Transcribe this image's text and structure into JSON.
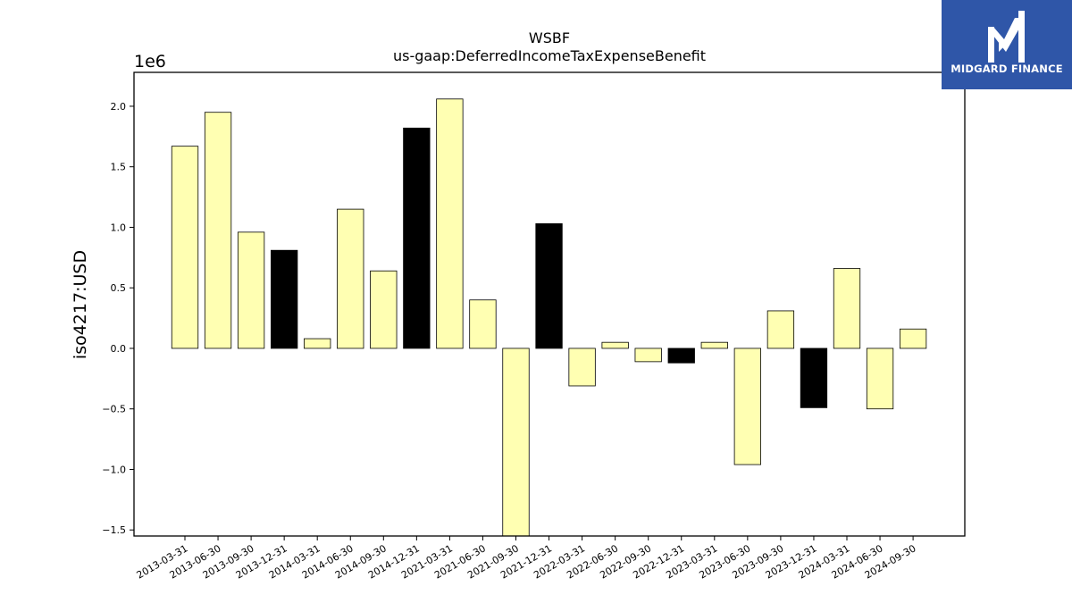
{
  "logo": {
    "text": "MIDGARD FINANCE",
    "background": "#2f56a8",
    "icon": "midgard-m-logo-icon"
  },
  "chart_data": {
    "type": "bar",
    "title": "WSBF",
    "subtitle": "us-gaap:DeferredIncomeTaxExpenseBenefit",
    "xlabel": "",
    "ylabel": "iso4217:USD",
    "offset_label": "1e6",
    "ylim": [
      -1.55,
      2.28
    ],
    "yticks": [
      -1.5,
      -1.0,
      -0.5,
      0.0,
      0.5,
      1.0,
      1.5,
      2.0
    ],
    "ytick_labels": [
      "−1.5",
      "−1.0",
      "−0.5",
      "0.0",
      "0.5",
      "1.0",
      "1.5",
      "2.0"
    ],
    "grid": false,
    "colors": {
      "default": "#ffffb2",
      "highlight": "#000000",
      "edge": "#000000"
    },
    "categories": [
      "2013-03-31",
      "2013-06-30",
      "2013-09-30",
      "2013-12-31",
      "2014-03-31",
      "2014-06-30",
      "2014-09-30",
      "2014-12-31",
      "2021-03-31",
      "2021-06-30",
      "2021-09-30",
      "2021-12-31",
      "2022-03-31",
      "2022-06-30",
      "2022-09-30",
      "2022-12-31",
      "2023-03-31",
      "2023-06-30",
      "2023-09-30",
      "2023-12-31",
      "2024-03-31",
      "2024-06-30",
      "2024-09-30"
    ],
    "values": [
      1.67,
      1.95,
      0.96,
      0.81,
      0.08,
      1.15,
      0.64,
      1.82,
      2.06,
      0.4,
      -1.56,
      1.03,
      -0.31,
      0.05,
      -0.11,
      -0.12,
      0.05,
      -0.96,
      0.31,
      -0.49,
      0.66,
      -0.5,
      0.16
    ],
    "highlighted": [
      false,
      false,
      false,
      true,
      false,
      false,
      false,
      true,
      false,
      false,
      false,
      true,
      false,
      false,
      false,
      true,
      false,
      false,
      false,
      true,
      false,
      false,
      false
    ]
  }
}
